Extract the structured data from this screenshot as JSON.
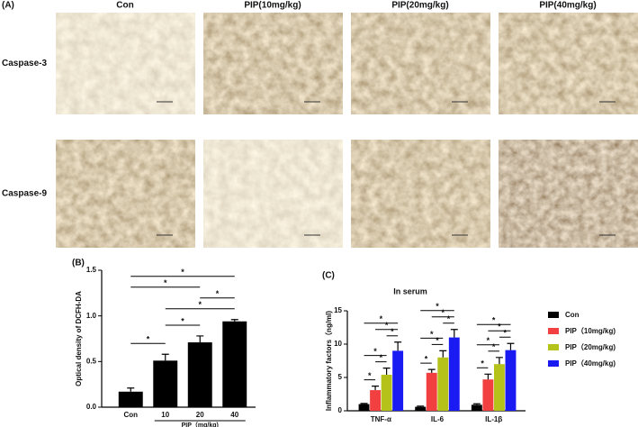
{
  "panel_a": {
    "label": "(A)",
    "columns": [
      "Con",
      "PIP(10mg/kg)",
      "PIP(20mg/kg)",
      "PIP(40mg/kg)"
    ],
    "rows": [
      "Caspase-3",
      "Caspase-9"
    ]
  },
  "chart_data": [
    {
      "type": "bar",
      "panel_label": "(B)",
      "y_label": "Optical density of DCFH-DA",
      "x_label": "PIP（mg/kg)",
      "categories": [
        "Con",
        "10",
        "20",
        "40"
      ],
      "values": [
        0.17,
        0.51,
        0.71,
        0.94
      ],
      "errors": [
        0.04,
        0.07,
        0.07,
        0.02
      ],
      "color": "#000000",
      "ylim": [
        0,
        1.5
      ],
      "yticks": [
        {
          "value": 0,
          "label": "0.0"
        },
        {
          "value": 0.5,
          "label": "0.5"
        },
        {
          "value": 1,
          "label": "1.0"
        },
        {
          "value": 1.5,
          "label": "1.5"
        }
      ],
      "significance": [
        {
          "from": "Con",
          "to": "10",
          "label": "*"
        },
        {
          "from": "10",
          "to": "20",
          "label": "*"
        },
        {
          "from": "10",
          "to": "40",
          "label": "*"
        },
        {
          "from": "20",
          "to": "40",
          "label": "*"
        },
        {
          "from": "Con",
          "to": "20",
          "label": "*"
        },
        {
          "from": "Con",
          "to": "40",
          "label": "*"
        }
      ]
    },
    {
      "type": "bar",
      "panel_label": "(C)",
      "title": "In serum",
      "y_label": "Inflammatory factors（ng/ml)",
      "categories": [
        "TNF-α",
        "IL-6",
        "IL-1β"
      ],
      "series": [
        {
          "name": "Con",
          "color": "#000000",
          "values": [
            1.0,
            0.6,
            0.9
          ],
          "errors": [
            0.1,
            0.1,
            0.15
          ]
        },
        {
          "name": "PIP（10mg/kg)",
          "color": "#f24040",
          "values": [
            3.1,
            5.7,
            4.7
          ],
          "errors": [
            0.6,
            0.5,
            0.8
          ]
        },
        {
          "name": "PIP（20mg/kg)",
          "color": "#b5c21a",
          "values": [
            5.4,
            8.0,
            7.0
          ],
          "errors": [
            1.0,
            1.0,
            1.0
          ]
        },
        {
          "name": "PIP（40mg/kg)",
          "color": "#1a1af2",
          "values": [
            9.0,
            11.0,
            9.1
          ],
          "errors": [
            1.3,
            1.2,
            1.0
          ]
        }
      ],
      "ylim": [
        0,
        15
      ],
      "yticks": [
        0,
        5,
        10,
        15
      ],
      "significance": [
        {
          "from": "Con",
          "to": "PIP（10mg/kg)",
          "label": "*"
        },
        {
          "from": "PIP（10mg/kg)",
          "to": "PIP（20mg/kg)",
          "label": "*"
        },
        {
          "from": "Con",
          "to": "PIP（20mg/kg)",
          "label": "*"
        },
        {
          "from": "PIP（20mg/kg)",
          "to": "PIP（40mg/kg)",
          "label": "*"
        },
        {
          "from": "PIP（10mg/kg)",
          "to": "PIP（40mg/kg)",
          "label": "*"
        },
        {
          "from": "Con",
          "to": "PIP（40mg/kg)",
          "label": "*"
        }
      ]
    }
  ]
}
